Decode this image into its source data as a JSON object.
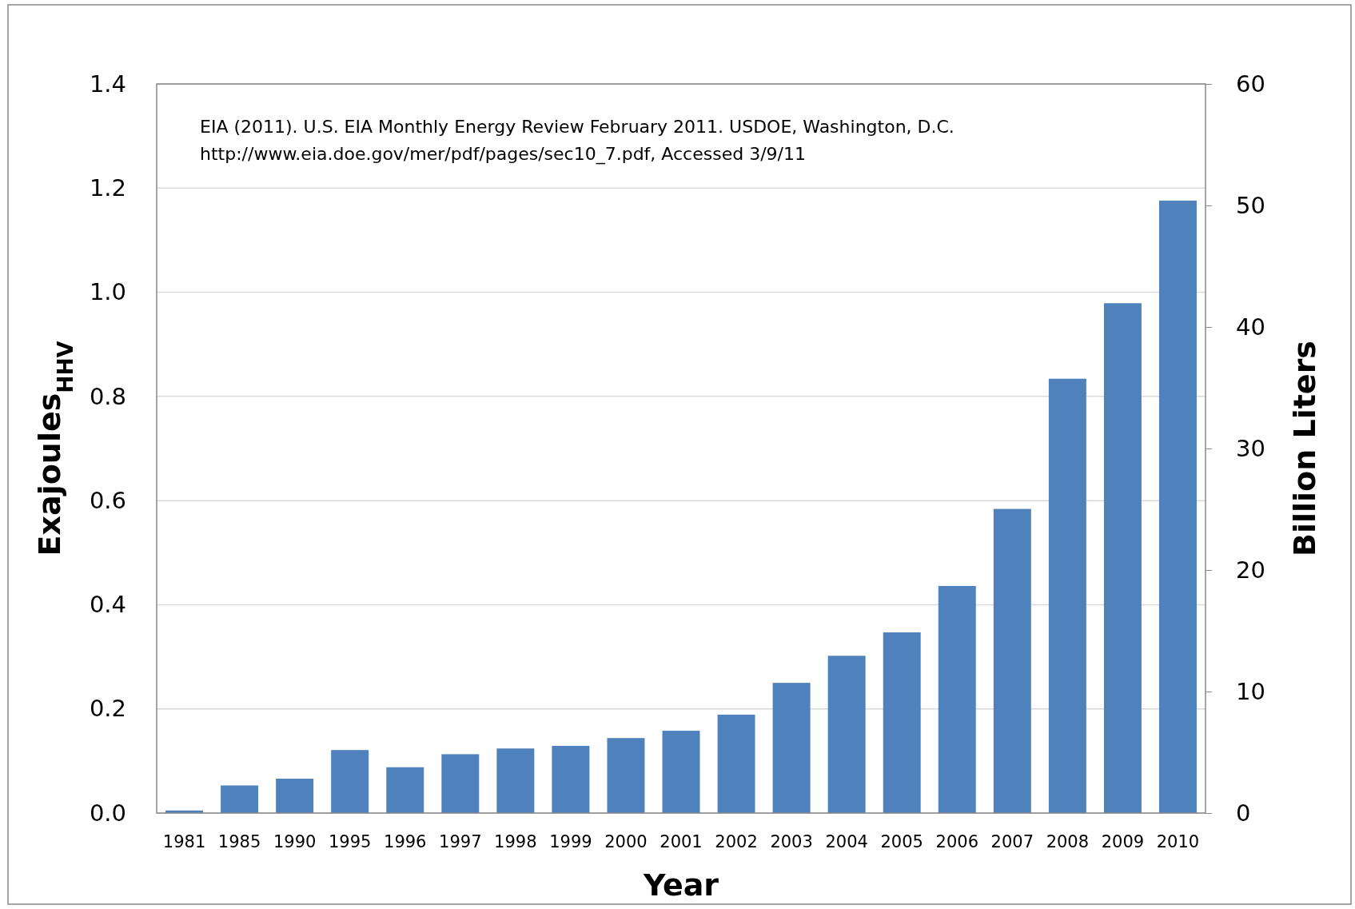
{
  "chart_data": {
    "type": "bar",
    "xlabel": "Year",
    "ylabel": "Exajoules$_{HHV}$",
    "y2label": "Billion Liters",
    "categories": [
      "1981",
      "1985",
      "1990",
      "1995",
      "1996",
      "1997",
      "1998",
      "1999",
      "2000",
      "2001",
      "2002",
      "2003",
      "2004",
      "2005",
      "2006",
      "2007",
      "2008",
      "2009",
      "2010"
    ],
    "values": [
      0.005,
      0.053,
      0.066,
      0.121,
      0.088,
      0.113,
      0.124,
      0.129,
      0.144,
      0.158,
      0.189,
      0.25,
      0.302,
      0.347,
      0.436,
      0.584,
      0.834,
      0.979,
      1.176
    ],
    "color": "#4f81bd",
    "ylim": [
      0,
      1.4
    ],
    "yticks": [
      {
        "value": 0,
        "label": "0.0"
      },
      {
        "value": 0.2,
        "label": "0.2"
      },
      {
        "value": 0.4,
        "label": "0.4"
      },
      {
        "value": 0.6,
        "label": "0.6"
      },
      {
        "value": 0.8,
        "label": "0.8"
      },
      {
        "value": 1,
        "label": "1.0"
      },
      {
        "value": 1.2,
        "label": "1.2"
      },
      {
        "value": 1.4,
        "label": "1.4"
      }
    ],
    "y2lim": [
      0,
      60
    ],
    "y2ticks": [
      0,
      10,
      20,
      30,
      40,
      50,
      60
    ],
    "grid": "y",
    "annotations": [
      "EIA (2011). U.S. EIA Monthly Energy Review February 2011. USDOE, Washington, D.C.",
      "http://www.eia.doe.gov/mer/pdf/pages/sec10_7.pdf,  Accessed 3/9/11"
    ]
  }
}
